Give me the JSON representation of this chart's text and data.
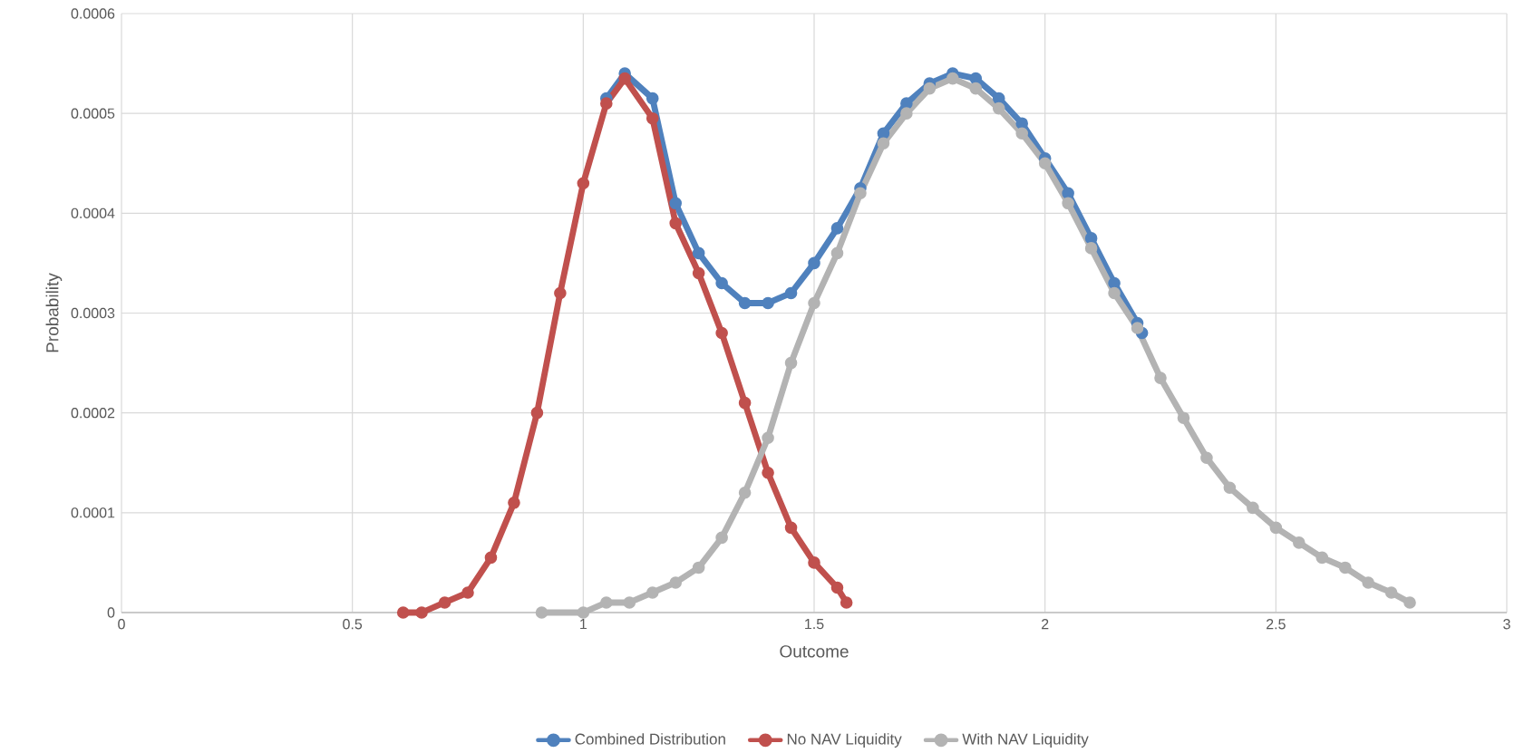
{
  "chart_data": {
    "type": "line",
    "xlabel": "Outcome",
    "ylabel": "Probability",
    "xlim": [
      0,
      3
    ],
    "ylim": [
      0,
      0.0006
    ],
    "xticks": [
      0,
      0.5,
      1,
      1.5,
      2,
      2.5,
      3
    ],
    "yticks": [
      0,
      0.0001,
      0.0002,
      0.0003,
      0.0004,
      0.0005,
      0.0006
    ],
    "grid": true,
    "legend": "bottom",
    "marker": "circle",
    "line_style": "solid",
    "series": [
      {
        "name": "Combined Distribution",
        "color": "#4f81bd",
        "x": [
          1.05,
          1.09,
          1.15,
          1.2,
          1.25,
          1.3,
          1.35,
          1.4,
          1.45,
          1.5,
          1.55,
          1.6,
          1.65,
          1.7,
          1.75,
          1.8,
          1.85,
          1.9,
          1.95,
          2.0,
          2.05,
          2.1,
          2.15,
          2.2,
          2.21
        ],
        "values": [
          0.000515,
          0.00054,
          0.000515,
          0.00041,
          0.00036,
          0.00033,
          0.00031,
          0.00031,
          0.00032,
          0.00035,
          0.000385,
          0.000425,
          0.00048,
          0.00051,
          0.00053,
          0.00054,
          0.000535,
          0.000515,
          0.00049,
          0.000455,
          0.00042,
          0.000375,
          0.00033,
          0.00029,
          0.00028
        ]
      },
      {
        "name": "No NAV Liquidity",
        "color": "#c0504d",
        "x": [
          0.61,
          0.65,
          0.7,
          0.75,
          0.8,
          0.85,
          0.9,
          0.95,
          1.0,
          1.05,
          1.09,
          1.15,
          1.2,
          1.25,
          1.3,
          1.35,
          1.4,
          1.45,
          1.5,
          1.55,
          1.57
        ],
        "values": [
          0,
          0,
          1e-05,
          2e-05,
          5.5e-05,
          0.00011,
          0.0002,
          0.00032,
          0.00043,
          0.00051,
          0.000535,
          0.000495,
          0.00039,
          0.00034,
          0.00028,
          0.00021,
          0.00014,
          8.5e-05,
          5e-05,
          2.5e-05,
          1e-05
        ]
      },
      {
        "name": "With NAV Liquidity",
        "color": "#b3b3b3",
        "x": [
          0.91,
          1.0,
          1.05,
          1.1,
          1.15,
          1.2,
          1.25,
          1.3,
          1.35,
          1.4,
          1.45,
          1.5,
          1.55,
          1.6,
          1.65,
          1.7,
          1.75,
          1.8,
          1.85,
          1.9,
          1.95,
          2.0,
          2.05,
          2.1,
          2.15,
          2.2,
          2.25,
          2.3,
          2.35,
          2.4,
          2.45,
          2.5,
          2.55,
          2.6,
          2.65,
          2.7,
          2.75,
          2.79
        ],
        "values": [
          0,
          0,
          1e-05,
          1e-05,
          2e-05,
          3e-05,
          4.5e-05,
          7.5e-05,
          0.00012,
          0.000175,
          0.00025,
          0.00031,
          0.00036,
          0.00042,
          0.00047,
          0.0005,
          0.000525,
          0.000535,
          0.000525,
          0.000505,
          0.00048,
          0.00045,
          0.00041,
          0.000365,
          0.00032,
          0.000285,
          0.000235,
          0.000195,
          0.000155,
          0.000125,
          0.000105,
          8.5e-05,
          7e-05,
          5.5e-05,
          4.5e-05,
          3e-05,
          2e-05,
          1e-05
        ]
      }
    ]
  }
}
